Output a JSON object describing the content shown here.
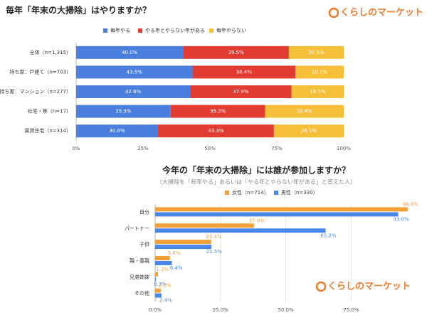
{
  "chart_data": [
    {
      "type": "stacked-bar",
      "orientation": "horizontal",
      "title": "毎年「年末の大掃除」はやりますか？",
      "logo": "くらしのマーケット",
      "categories": [
        "全体（n=1,315）",
        "持ち家：戸建て（n=703）",
        "持ち家：マンション（n=277）",
        "社宅・寮（n=17）",
        "賃貸住宅（n=314）"
      ],
      "series": [
        {
          "name": "毎年やる",
          "color": "#4a7fdf",
          "values": [
            40.0,
            43.5,
            42.6,
            35.3,
            30.6
          ],
          "value_labels": [
            "40.0%",
            "43.5%",
            "42.6%",
            "35.3%",
            "30.6%"
          ]
        },
        {
          "name": "やる年とやらない年がある",
          "color": "#e23c32",
          "values": [
            39.5,
            38.4,
            37.9,
            35.3,
            43.3
          ],
          "value_labels": [
            "39.5%",
            "38.4%",
            "37.9%",
            "35.3%",
            "43.3%"
          ]
        },
        {
          "name": "毎年やらない",
          "color": "#f6bf3a",
          "values": [
            20.5,
            18.1,
            19.5,
            29.4,
            26.1
          ],
          "value_labels": [
            "20.5%",
            "18.1%",
            "19.5%",
            "29.4%",
            "26.1%"
          ]
        }
      ],
      "xlim": [
        0,
        100
      ],
      "xticks": [
        {
          "value": 0,
          "label": "0%"
        },
        {
          "value": 25,
          "label": "25%"
        },
        {
          "value": 50,
          "label": "50%"
        },
        {
          "value": 75,
          "label": "75%"
        },
        {
          "value": 100,
          "label": "100%"
        }
      ],
      "grid": false
    },
    {
      "type": "grouped-bar",
      "orientation": "horizontal",
      "title": "今年の「年末の大掃除」には誰が参加しますか？",
      "subtitle": "（大掃除を「毎年やる」あるいは「やる年とやらない年がある」と答えた人）",
      "logo": "くらしのマーケット",
      "categories": [
        "自分",
        "パートナー",
        "子供",
        "親・義親",
        "兄弟姉妹",
        "その他"
      ],
      "series": [
        {
          "name": "女性（n=714）",
          "color": "#f0a037",
          "values": [
            96.6,
            37.8,
            21.4,
            5.6,
            1.1,
            2.1
          ],
          "value_labels": [
            "96.6%",
            "37.8%",
            "21.4%",
            "5.6%",
            "1.1%",
            "2.1%"
          ]
        },
        {
          "name": "男性（n=330）",
          "color": "#4a86e8",
          "values": [
            93.0,
            65.2,
            21.5,
            6.4,
            0.3,
            2.4
          ],
          "value_labels": [
            "93.0%",
            "65.2%",
            "21.5%",
            "6.4%",
            "0.3%",
            "2.4%"
          ]
        }
      ],
      "xlim": [
        0,
        98
      ],
      "xticks": [
        {
          "value": 0,
          "label": "0.0%"
        },
        {
          "value": 25,
          "label": "25.0%"
        },
        {
          "value": 50,
          "label": "50.0%"
        },
        {
          "value": 75,
          "label": "75.0%"
        }
      ],
      "grid": true
    }
  ]
}
